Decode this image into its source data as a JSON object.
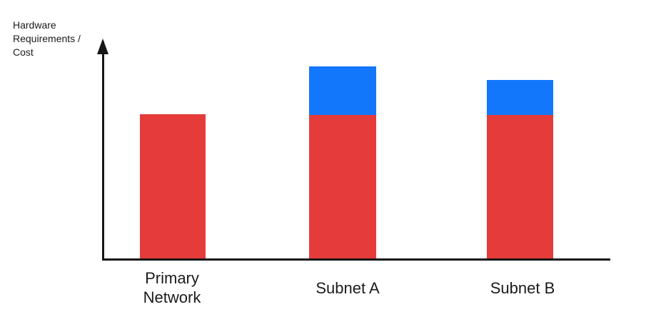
{
  "chart_data": {
    "type": "bar",
    "subtype": "stacked",
    "title": "",
    "xlabel": "",
    "ylabel": "Hardware Requirements / Cost",
    "categories": [
      "Primary Network",
      "Subnet A",
      "Subnet B"
    ],
    "series": [
      {
        "name": "red",
        "color": "#E53B3B",
        "values": [
          202,
          201,
          201
        ]
      },
      {
        "name": "blue",
        "color": "#1277FB",
        "values": [
          0,
          68,
          49
        ]
      }
    ],
    "value_units": "relative (no numeric axis shown; 1 unit = 1 px)",
    "ylim": [
      0,
      306
    ],
    "grid": false,
    "legend": "none",
    "colors": {
      "axis": "#161616",
      "text": "#1B1B1B"
    }
  }
}
